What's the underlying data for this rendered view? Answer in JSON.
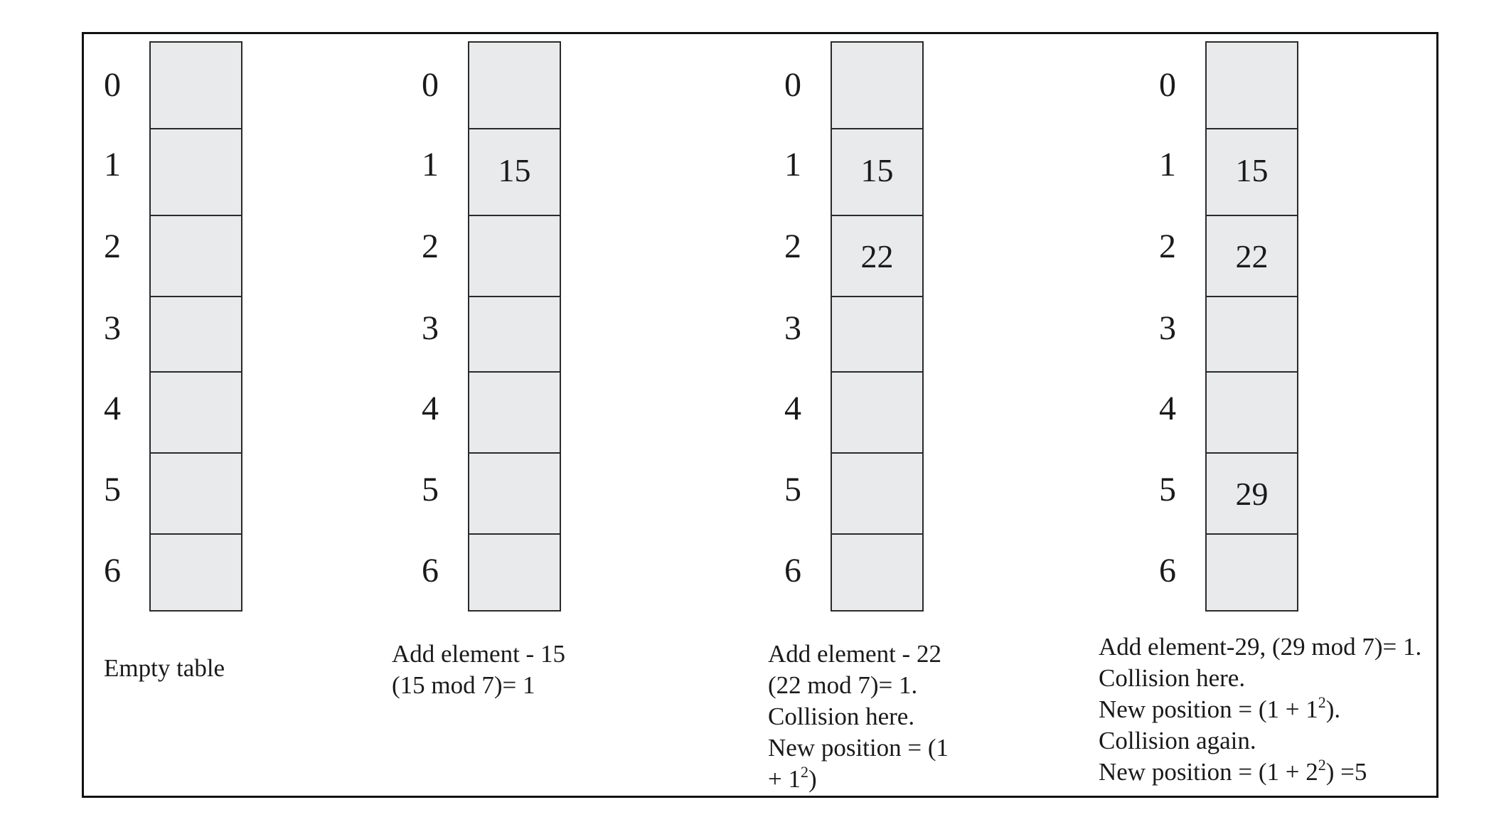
{
  "panels": [
    {
      "indices": [
        "0",
        "1",
        "2",
        "3",
        "4",
        "5",
        "6"
      ],
      "values": [
        "",
        "",
        "",
        "",
        "",
        "",
        ""
      ],
      "caption_lines": [
        "Empty table"
      ]
    },
    {
      "indices": [
        "0",
        "1",
        "2",
        "3",
        "4",
        "5",
        "6"
      ],
      "values": [
        "",
        "15",
        "",
        "",
        "",
        "",
        ""
      ],
      "caption_lines": [
        "Add element - 15",
        "(15 mod 7)= 1"
      ]
    },
    {
      "indices": [
        "0",
        "1",
        "2",
        "3",
        "4",
        "5",
        "6"
      ],
      "values": [
        "",
        "15",
        "22",
        "",
        "",
        "",
        ""
      ],
      "caption_lines": [
        "Add element - 22",
        "(22 mod 7)= 1.",
        "Collision here.",
        "New position = (1",
        "+ 1",
        "2",
        ")"
      ]
    },
    {
      "indices": [
        "0",
        "1",
        "2",
        "3",
        "4",
        "5",
        "6"
      ],
      "values": [
        "",
        "15",
        "22",
        "",
        "",
        "29",
        ""
      ],
      "caption_lines": [
        "Add element-29, (29 mod 7)= 1.",
        "Collision here.",
        "New position = (1 + 1",
        "2",
        ").",
        "Collision again.",
        "New position = (1 + 2",
        "2",
        ") =5"
      ]
    }
  ]
}
